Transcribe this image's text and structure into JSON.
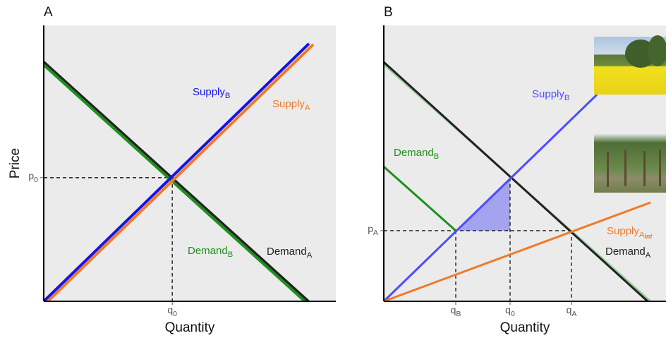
{
  "chart_data": [
    {
      "type": "line",
      "panel": "A",
      "x_label": "Quantity",
      "y_label": "Price",
      "xlim": [
        0,
        100
      ],
      "ylim": [
        0,
        100
      ],
      "xticks": [
        {
          "value": 44,
          "label": "q",
          "subscript": "0"
        }
      ],
      "yticks": [
        {
          "value": 44.8,
          "label": "p",
          "subscript": "0"
        }
      ],
      "series": [
        {
          "name": "Demand",
          "subscript": "A",
          "color": "#222222",
          "x": [
            0,
            90.6
          ],
          "values": [
            86.7,
            0
          ]
        },
        {
          "name": "Demand",
          "subscript": "B",
          "color": "#1f8f1f",
          "x": [
            0,
            89.4
          ],
          "values": [
            85.7,
            0
          ]
        },
        {
          "name": "Supply",
          "subscript": "A",
          "color": "#f07a2a",
          "x": [
            1.4,
            92.3
          ],
          "values": [
            0,
            93.1
          ]
        },
        {
          "name": "Supply",
          "subscript": "B",
          "color": "#1414e6",
          "x": [
            0,
            90.8
          ],
          "values": [
            0,
            93.4
          ]
        }
      ],
      "guides": [
        {
          "x": [
            0,
            44
          ],
          "y": [
            44.8,
            44.8
          ]
        },
        {
          "x": [
            44,
            44
          ],
          "y": [
            44.8,
            0
          ]
        }
      ]
    },
    {
      "type": "line",
      "panel": "B",
      "x_label": "Quantity",
      "xlim": [
        0,
        100
      ],
      "ylim": [
        0,
        100
      ],
      "xticks": [
        {
          "value": 25.5,
          "label": "q",
          "subscript": "B"
        },
        {
          "value": 44.75,
          "label": "q",
          "subscript": "0"
        },
        {
          "value": 66.5,
          "label": "q",
          "subscript": "A"
        }
      ],
      "yticks": [
        {
          "value": 25.6,
          "label": "p",
          "subscript": "A"
        }
      ],
      "series": [
        {
          "color": "#98cc98",
          "x": [
            0,
            94.5
          ],
          "values": [
            85.9,
            0
          ]
        },
        {
          "name": "Demand",
          "subscript": "A",
          "color": "#222222",
          "x": [
            0,
            93.5
          ],
          "values": [
            86.7,
            0
          ]
        },
        {
          "name": "Demand",
          "subscript": "B",
          "color": "#1f8f1f",
          "x": [
            0,
            25.5
          ],
          "values": [
            48.8,
            25.6
          ]
        },
        {
          "name": "Supply",
          "subscript": "B",
          "color": "#4d4dff",
          "x": [
            0,
            75.5
          ],
          "values": [
            0,
            74.9
          ]
        },
        {
          "name": "Supply",
          "subscript": "A",
          "subscript2": "Int",
          "color": "#f07a2a",
          "x": [
            0,
            94.5
          ],
          "values": [
            0,
            35.8
          ]
        }
      ],
      "shaded": {
        "color": "#a3a3f0",
        "x": [
          25.5,
          44.75,
          44.75
        ],
        "values": [
          25.6,
          44.8,
          25.6
        ]
      },
      "guides": [
        {
          "x": [
            0,
            66.5
          ],
          "y": [
            25.6,
            25.6
          ]
        },
        {
          "x": [
            25.5,
            25.5
          ],
          "y": [
            25.6,
            0
          ]
        },
        {
          "x": [
            44.75,
            44.75
          ],
          "y": [
            44.8,
            0
          ]
        },
        {
          "x": [
            66.5,
            66.5
          ],
          "y": [
            25.6,
            0
          ]
        }
      ]
    }
  ]
}
